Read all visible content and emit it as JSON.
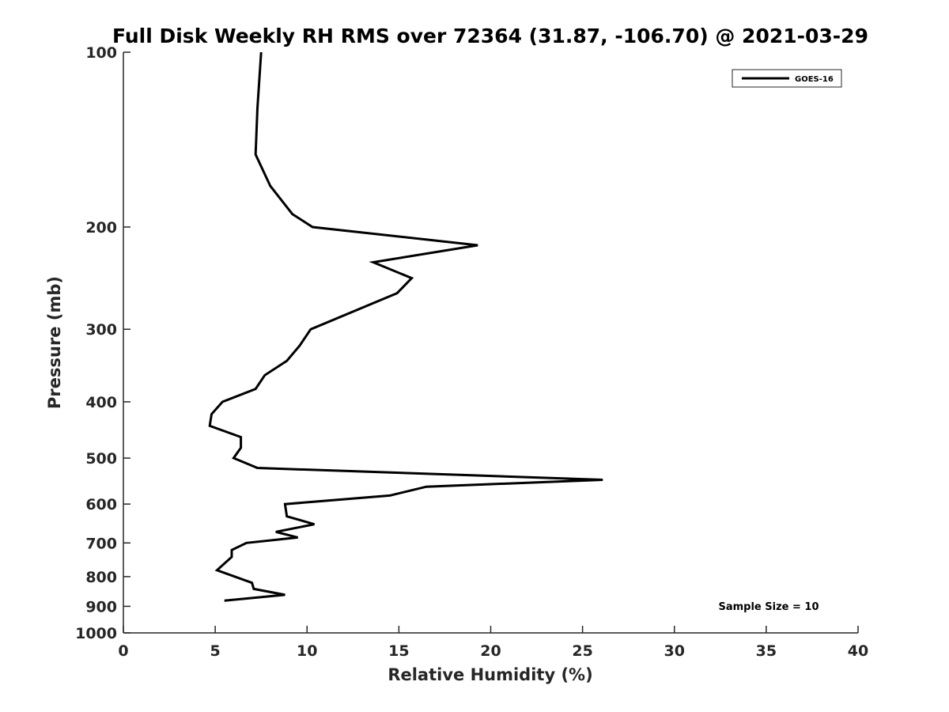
{
  "chart_data": {
    "type": "line",
    "title": "Full Disk Weekly RH RMS over 72364 (31.87, -106.70) @ 2021-03-29",
    "xlabel": "Relative Humidity (%)",
    "ylabel": "Pressure (mb)",
    "xlim": [
      0,
      40
    ],
    "ylim": [
      100,
      1000
    ],
    "y_scale": "log",
    "y_reversed": true,
    "x_ticks": [
      0,
      5,
      10,
      15,
      20,
      25,
      30,
      35,
      40
    ],
    "y_ticks": [
      100,
      200,
      300,
      400,
      500,
      600,
      700,
      800,
      900,
      1000
    ],
    "legend": {
      "position": "top-right",
      "entries": [
        "GOES-16"
      ]
    },
    "annotation": "Sample Size = 10",
    "grid": false,
    "series": [
      {
        "name": "GOES-16",
        "color": "#000000",
        "points": [
          {
            "x": 7.5,
            "y": 100
          },
          {
            "x": 7.3,
            "y": 125
          },
          {
            "x": 7.2,
            "y": 150
          },
          {
            "x": 8.0,
            "y": 170
          },
          {
            "x": 9.2,
            "y": 190
          },
          {
            "x": 10.3,
            "y": 200
          },
          {
            "x": 19.3,
            "y": 215
          },
          {
            "x": 13.6,
            "y": 230
          },
          {
            "x": 15.7,
            "y": 245
          },
          {
            "x": 14.9,
            "y": 260
          },
          {
            "x": 10.2,
            "y": 300
          },
          {
            "x": 9.6,
            "y": 320
          },
          {
            "x": 8.9,
            "y": 340
          },
          {
            "x": 7.7,
            "y": 360
          },
          {
            "x": 7.2,
            "y": 380
          },
          {
            "x": 5.4,
            "y": 400
          },
          {
            "x": 4.8,
            "y": 420
          },
          {
            "x": 4.7,
            "y": 440
          },
          {
            "x": 6.4,
            "y": 460
          },
          {
            "x": 6.4,
            "y": 480
          },
          {
            "x": 6.0,
            "y": 500
          },
          {
            "x": 7.3,
            "y": 520
          },
          {
            "x": 26.1,
            "y": 545
          },
          {
            "x": 16.5,
            "y": 560
          },
          {
            "x": 14.5,
            "y": 580
          },
          {
            "x": 8.8,
            "y": 600
          },
          {
            "x": 8.9,
            "y": 630
          },
          {
            "x": 10.4,
            "y": 650
          },
          {
            "x": 8.3,
            "y": 670
          },
          {
            "x": 9.5,
            "y": 685
          },
          {
            "x": 6.7,
            "y": 700
          },
          {
            "x": 5.9,
            "y": 720
          },
          {
            "x": 5.9,
            "y": 740
          },
          {
            "x": 5.1,
            "y": 780
          },
          {
            "x": 7.0,
            "y": 820
          },
          {
            "x": 7.1,
            "y": 840
          },
          {
            "x": 8.8,
            "y": 860
          },
          {
            "x": 5.5,
            "y": 880
          }
        ]
      }
    ]
  }
}
